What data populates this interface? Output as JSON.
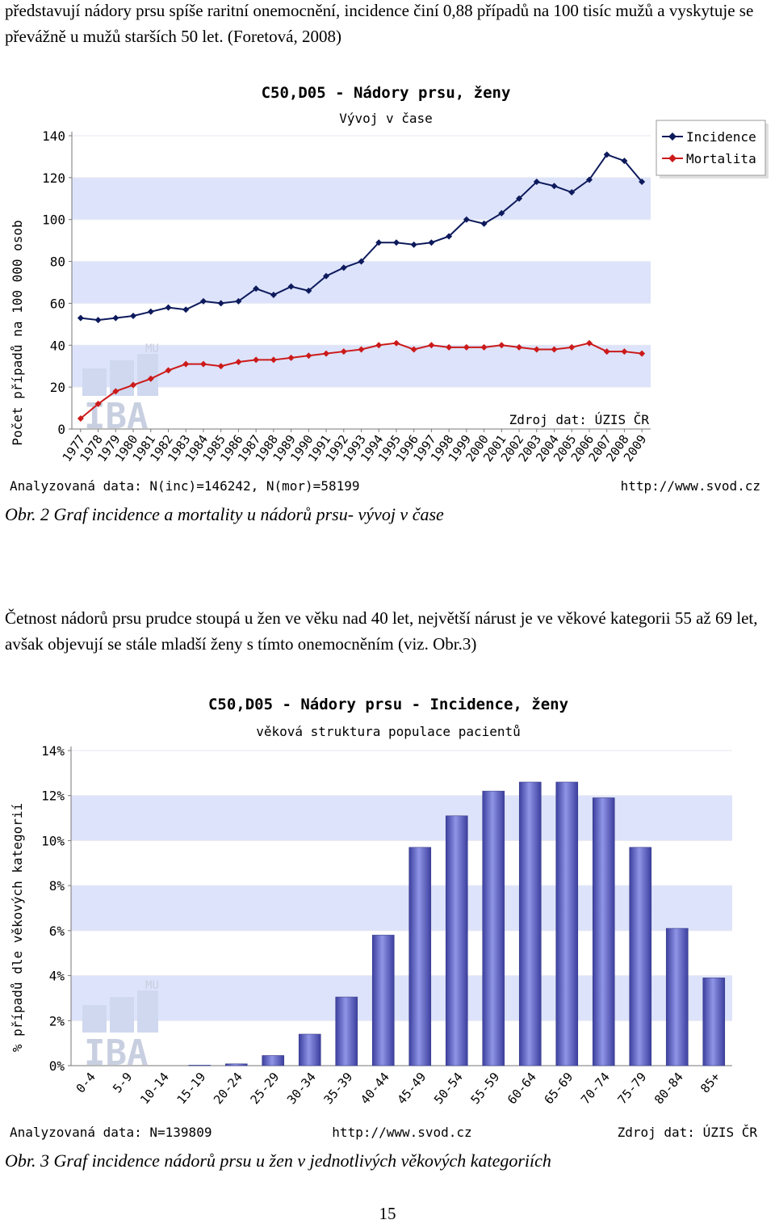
{
  "intro_text": "představují nádory prsu spíše raritní onemocnění, incidence  činí  0,88 případů na 100 tisíc mužů a vyskytuje se převážně u mužů starších 50 let. (Foretová, 2008)",
  "figure2_caption": "Obr. 2 Graf incidence a mortality u nádorů prsu- vývoj v čase",
  "middle_text": "Četnost nádorů prsu prudce stoupá u žen ve věku nad 40 let, největší nárust je ve věkové kategorii 55 až 69 let, avšak objevují se stále mladší ženy s tímto onemocněním (viz. Obr.3)",
  "figure3_caption": "Obr. 3 Graf incidence nádorů prsu u žen v jednotlivých věkových kategoriích",
  "page_number": "15",
  "watermark": {
    "logo_text": "IBA",
    "small_text": "MU"
  },
  "colors": {
    "incidence": "#0d1a5c",
    "mortality": "#cc1a1a",
    "band": "#dde3fa",
    "bar": "#8f95e6",
    "bar_dark": "#3c3f9e"
  },
  "chart_data": [
    {
      "type": "line",
      "title": "C50,D05 - Nádory prsu, ženy",
      "subtitle": "Vývoj v čase",
      "ylabel": "Počet případů na 100 000 osob",
      "xlabel": "",
      "ylim": [
        0,
        140
      ],
      "yticks": [
        "0",
        "20",
        "40",
        "60",
        "80",
        "100",
        "120",
        "140"
      ],
      "x": [
        "1977",
        "1978",
        "1979",
        "1980",
        "1981",
        "1982",
        "1983",
        "1984",
        "1985",
        "1986",
        "1987",
        "1988",
        "1989",
        "1990",
        "1991",
        "1992",
        "1993",
        "1994",
        "1995",
        "1996",
        "1997",
        "1998",
        "1999",
        "2000",
        "2001",
        "2002",
        "2003",
        "2004",
        "2005",
        "2006",
        "2007",
        "2008",
        "2009"
      ],
      "series": [
        {
          "name": "Incidence",
          "values": [
            53,
            52,
            53,
            54,
            56,
            58,
            57,
            61,
            60,
            61,
            67,
            64,
            68,
            66,
            73,
            77,
            80,
            89,
            89,
            88,
            89,
            92,
            100,
            98,
            103,
            110,
            118,
            116,
            113,
            119,
            131,
            128,
            118
          ]
        },
        {
          "name": "Mortalita",
          "values": [
            5,
            12,
            18,
            21,
            24,
            28,
            31,
            31,
            30,
            32,
            33,
            33,
            34,
            35,
            36,
            37,
            38,
            40,
            41,
            38,
            40,
            39,
            39,
            39,
            40,
            39,
            38,
            38,
            39,
            41,
            37,
            37,
            36
          ]
        }
      ],
      "legend_position": "top-right",
      "grid": true,
      "source_note": "Zdroj dat: ÚZIS ČR",
      "footer_left": "Analyzovaná data: N(inc)=146242, N(mor)=58199",
      "footer_right": "http://www.svod.cz"
    },
    {
      "type": "bar",
      "title": "C50,D05 - Nádory prsu - Incidence, ženy",
      "subtitle": "věková struktura populace pacientů",
      "ylabel": "% případů dle věkových kategorií",
      "xlabel": "",
      "ylim": [
        0,
        14
      ],
      "yticks": [
        "0%",
        "2%",
        "4%",
        "6%",
        "8%",
        "10%",
        "12%",
        "14%"
      ],
      "categories": [
        "0-4",
        "5-9",
        "10-14",
        "15-19",
        "20-24",
        "25-29",
        "30-34",
        "35-39",
        "40-44",
        "45-49",
        "50-54",
        "55-59",
        "60-64",
        "65-69",
        "70-74",
        "75-79",
        "80-84",
        "85+"
      ],
      "values": [
        0,
        0,
        0,
        0.02,
        0.08,
        0.45,
        1.4,
        3.05,
        5.8,
        9.7,
        11.1,
        12.2,
        12.6,
        12.6,
        11.9,
        9.7,
        6.1,
        3.9
      ],
      "grid": true,
      "footer_left": "Analyzovaná data: N=139809",
      "footer_center": "http://www.svod.cz",
      "footer_right": "Zdroj dat: ÚZIS ČR"
    }
  ]
}
